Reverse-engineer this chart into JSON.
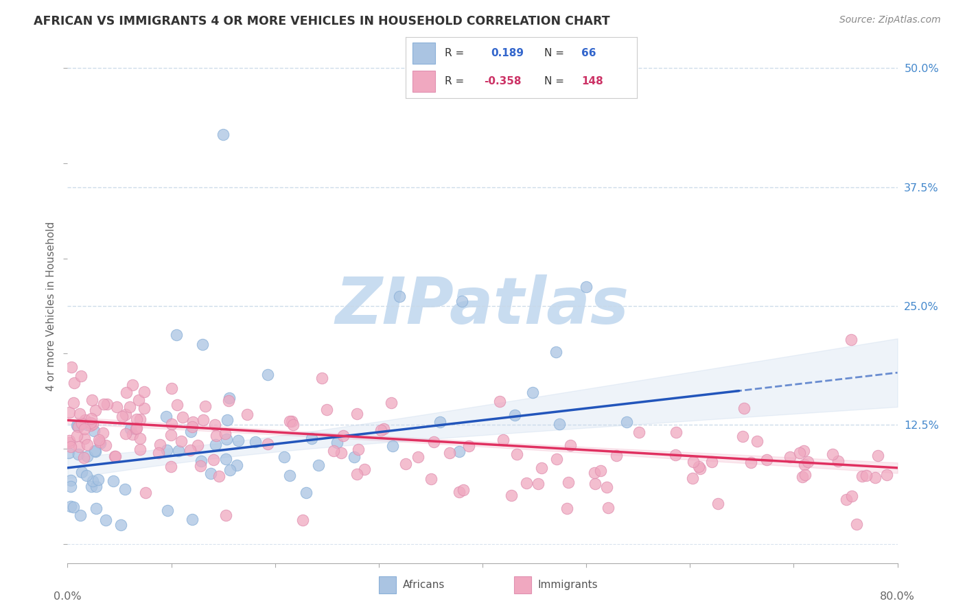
{
  "title": "AFRICAN VS IMMIGRANTS 4 OR MORE VEHICLES IN HOUSEHOLD CORRELATION CHART",
  "source": "Source: ZipAtlas.com",
  "ylabel": "4 or more Vehicles in Household",
  "xlim": [
    0.0,
    80.0
  ],
  "ylim": [
    -2.0,
    52.0
  ],
  "right_yticks": [
    50.0,
    37.5,
    25.0,
    12.5
  ],
  "african_R": 0.189,
  "african_N": 66,
  "immigrant_R": -0.358,
  "immigrant_N": 148,
  "african_color": "#aac4e2",
  "immigrant_color": "#f0a8c0",
  "african_line_color": "#2255bb",
  "immigrant_line_color": "#e03060",
  "background_color": "#ffffff",
  "grid_color": "#c8d8e8",
  "watermark_color": "#c8dcf0",
  "title_color": "#333333",
  "source_color": "#888888",
  "axis_label_color": "#666666",
  "right_tick_color": "#4488cc"
}
